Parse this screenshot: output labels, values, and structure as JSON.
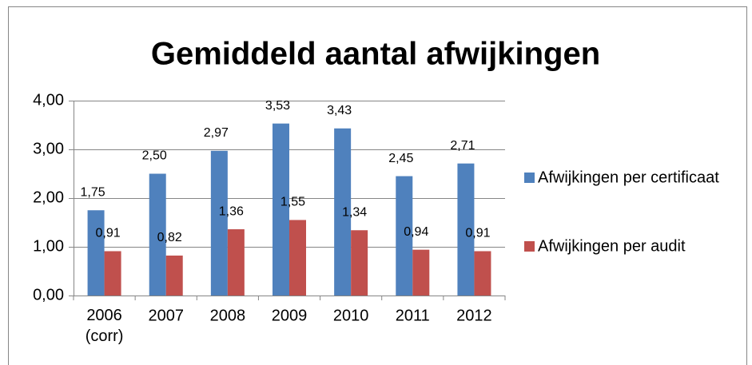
{
  "chart_data": {
    "type": "bar",
    "title": "Gemiddeld aantal afwijkingen",
    "categories": [
      "2006 (corr)",
      "2007",
      "2008",
      "2009",
      "2010",
      "2011",
      "2012"
    ],
    "series": [
      {
        "name": "Afwijkingen per certificaat",
        "color": "#4f81bd",
        "values": [
          1.75,
          2.5,
          2.97,
          3.53,
          3.43,
          2.45,
          2.71
        ],
        "value_labels": [
          "1,75",
          "2,50",
          "2,97",
          "3,53",
          "3,43",
          "2,45",
          "2,71"
        ]
      },
      {
        "name": "Afwijkingen per audit",
        "color": "#c0504d",
        "values": [
          0.91,
          0.82,
          1.36,
          1.55,
          1.34,
          0.94,
          0.91
        ],
        "value_labels": [
          "0,91",
          "0,82",
          "1,36",
          "1,55",
          "1,34",
          "0,94",
          "0,91"
        ]
      }
    ],
    "ylim": [
      0,
      4
    ],
    "yticks": [
      {
        "value": 0,
        "label": "0,00"
      },
      {
        "value": 1,
        "label": "1,00"
      },
      {
        "value": 2,
        "label": "2,00"
      },
      {
        "value": 3,
        "label": "3,00"
      },
      {
        "value": 4,
        "label": "4,00"
      }
    ],
    "grid": true,
    "legend": "right"
  }
}
